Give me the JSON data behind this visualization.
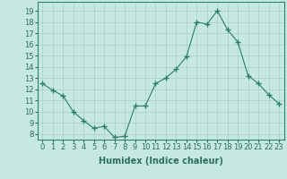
{
  "x": [
    0,
    1,
    2,
    3,
    4,
    5,
    6,
    7,
    8,
    9,
    10,
    11,
    12,
    13,
    14,
    15,
    16,
    17,
    18,
    19,
    20,
    21,
    22,
    23
  ],
  "y": [
    12.5,
    11.9,
    11.4,
    10.0,
    9.2,
    8.5,
    8.7,
    7.7,
    7.8,
    10.5,
    10.5,
    12.5,
    13.0,
    13.8,
    14.9,
    18.0,
    17.8,
    19.0,
    17.3,
    16.2,
    13.2,
    12.5,
    11.5,
    10.7
  ],
  "line_color": "#2e7d6e",
  "marker": "+",
  "marker_size": 4,
  "bg_color": "#c5e8e0",
  "grid_color": "#aacfc7",
  "xlabel": "Humidex (Indice chaleur)",
  "ylim": [
    7.5,
    19.8
  ],
  "xlim": [
    -0.5,
    23.5
  ],
  "yticks": [
    8,
    9,
    10,
    11,
    12,
    13,
    14,
    15,
    16,
    17,
    18,
    19
  ],
  "xticks": [
    0,
    1,
    2,
    3,
    4,
    5,
    6,
    7,
    8,
    9,
    10,
    11,
    12,
    13,
    14,
    15,
    16,
    17,
    18,
    19,
    20,
    21,
    22,
    23
  ],
  "tick_label_color": "#2e6d60",
  "label_color": "#2e6d60",
  "font_size": 6,
  "xlabel_fontsize": 7
}
